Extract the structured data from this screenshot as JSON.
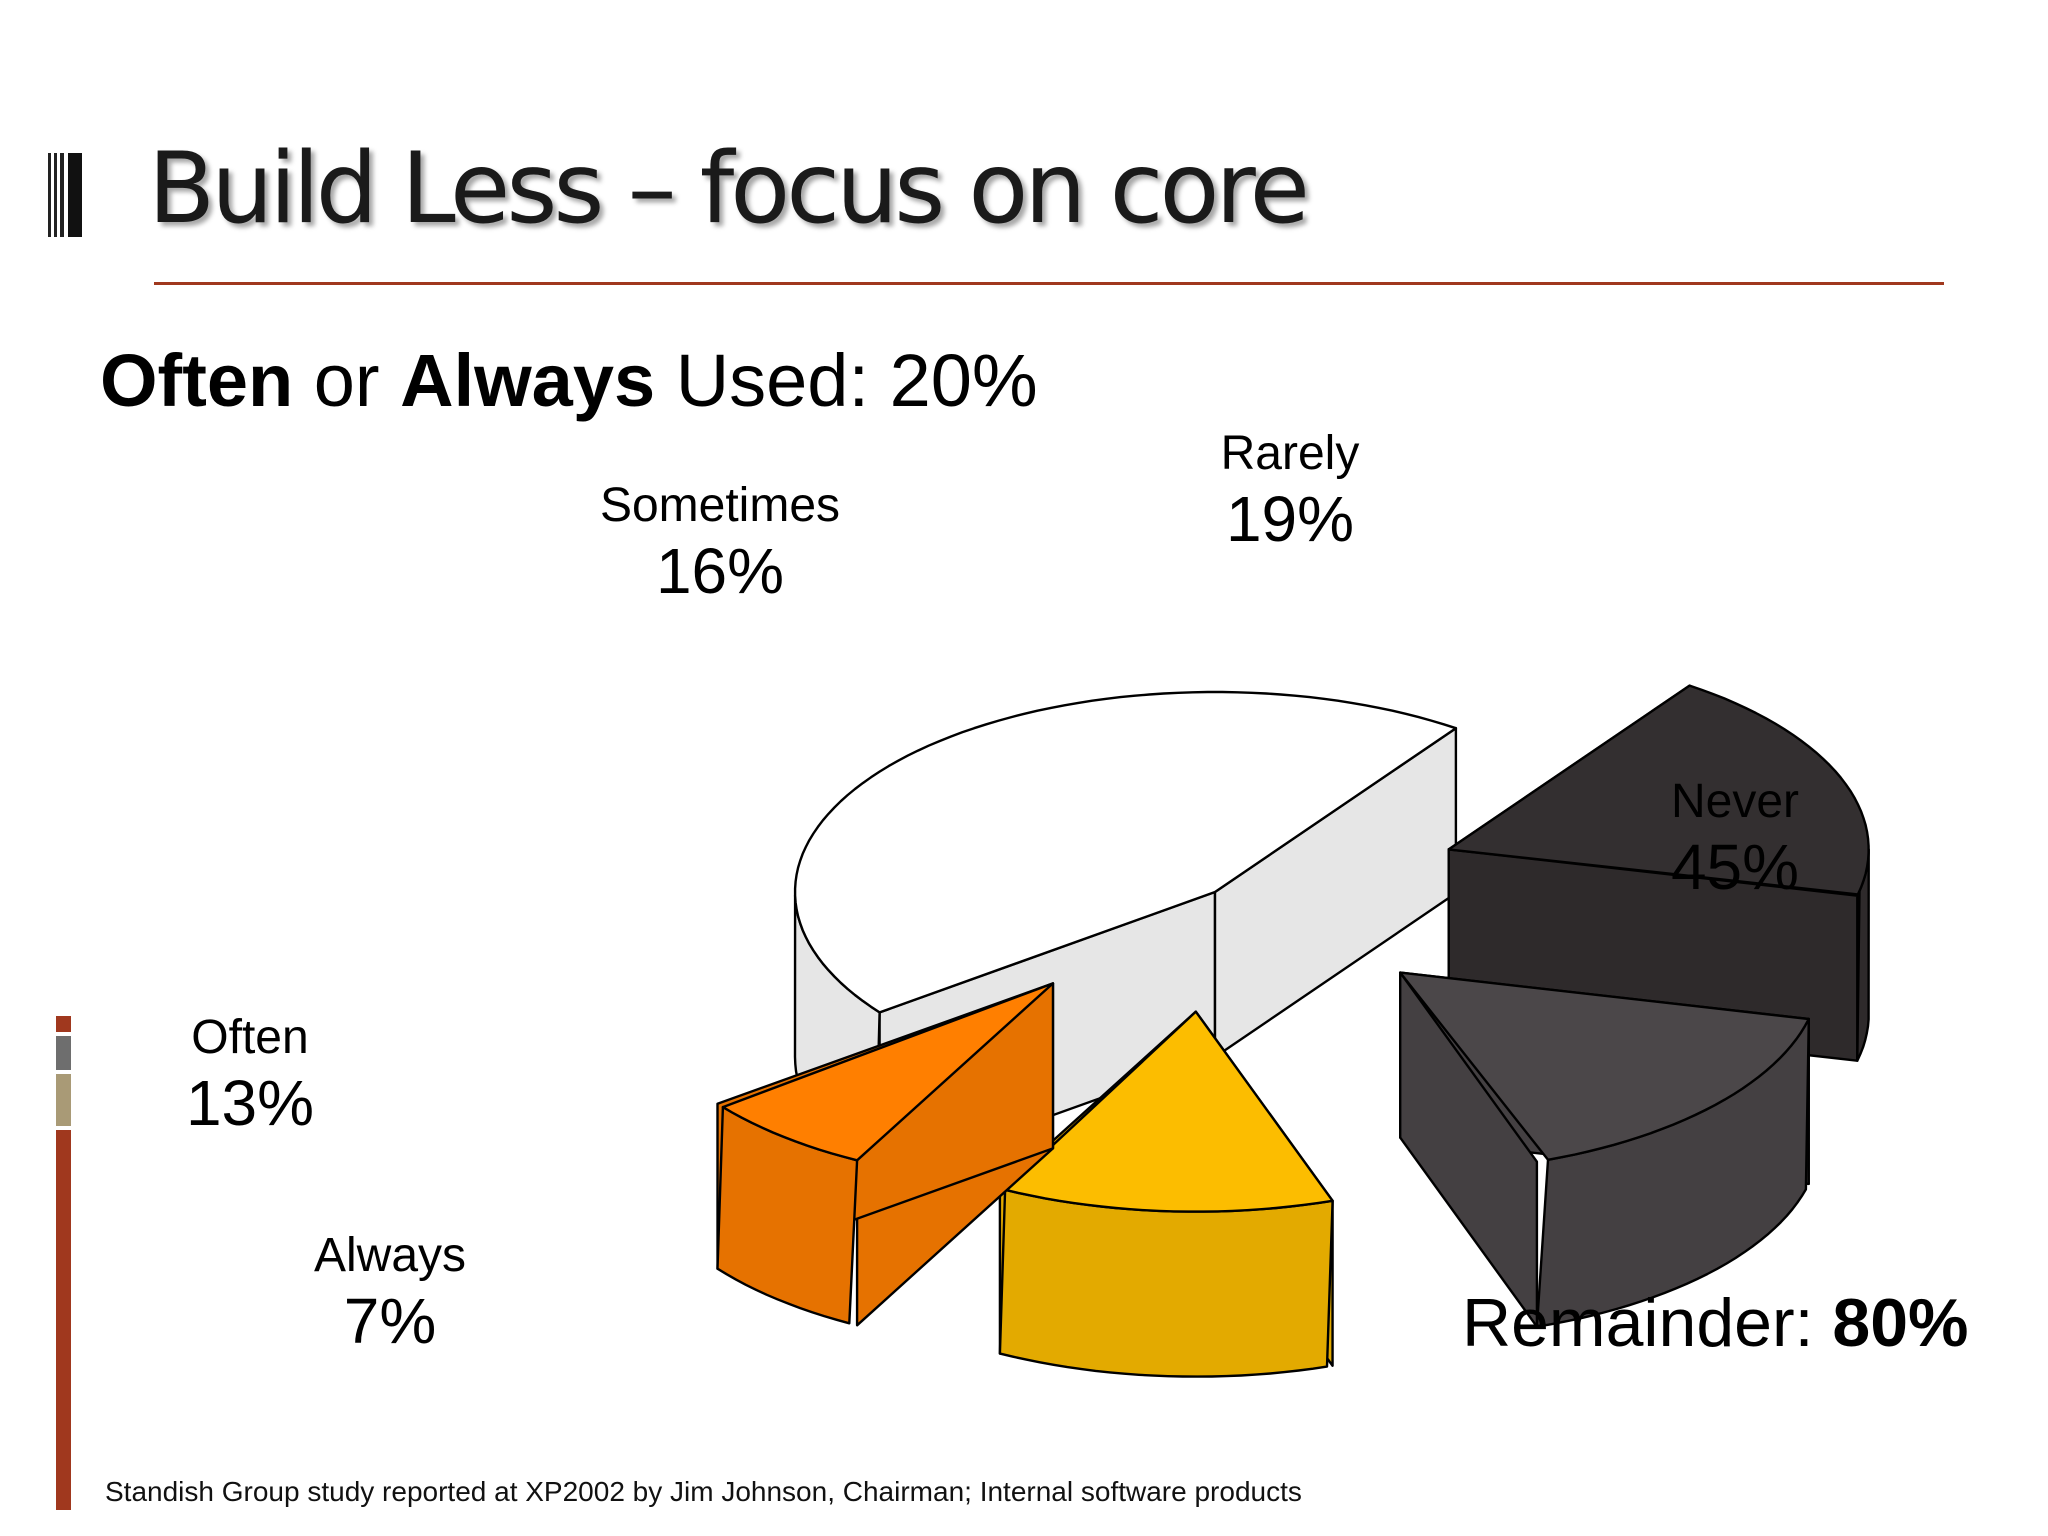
{
  "slide": {
    "title": "Build Less – focus on core",
    "subtitle_part1": "Often",
    "subtitle_part2": " or ",
    "subtitle_part3": "Always",
    "subtitle_part4": " Used: 20%",
    "remainder_label": "Remainder: ",
    "remainder_value": "80%",
    "footnote": "Standish Group study reported at XP2002 by Jim Johnson, Chairman;  Internal software products"
  },
  "chart_data": {
    "type": "pie",
    "title": "",
    "categories": [
      "Rarely",
      "Sometimes",
      "Often",
      "Always",
      "Never"
    ],
    "values": [
      19,
      16,
      13,
      7,
      45
    ],
    "labels": [
      "19%",
      "16%",
      "13%",
      "7%",
      "45%"
    ],
    "colors": [
      "#332f30",
      "#4b4749",
      "#fcbd00",
      "#ff7f00",
      "#ffffff"
    ],
    "exploded": [
      "Rarely",
      "Sometimes",
      "Often",
      "Always"
    ],
    "style": "3d"
  },
  "colors": {
    "title_rule": "#a0381e",
    "left_bar_top": "#a0381e",
    "left_bar_gray": "#6e6e6e",
    "left_bar_tan": "#a99a76"
  }
}
